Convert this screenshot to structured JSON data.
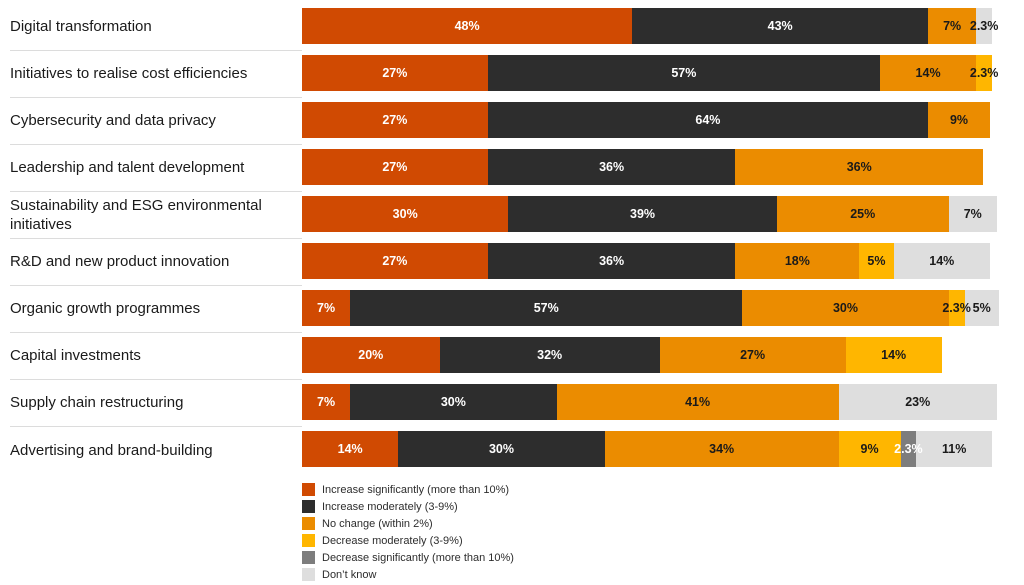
{
  "chart_data": {
    "type": "bar",
    "stacked": true,
    "orientation": "horizontal",
    "unit": "%",
    "xlim": [
      0,
      100
    ],
    "grid": false,
    "legend_position": "bottom-left",
    "categories": [
      "Digital transformation",
      "Initiatives to realise cost efficiencies",
      "Cybersecurity and data privacy",
      "Leadership and talent development",
      "Sustainability and ESG environmental initiatives",
      "R&D and new product innovation",
      "Organic growth programmes",
      "Capital investments",
      "Supply chain restructuring",
      "Advertising and brand-building"
    ],
    "series": [
      {
        "key": "increase-significantly",
        "name": "Increase significantly (more than 10%)",
        "color": "#d04a02",
        "text_color": "#ffffff",
        "values": [
          48,
          27,
          27,
          27,
          30,
          27,
          7,
          20,
          7,
          14
        ]
      },
      {
        "key": "increase-moderately",
        "name": "Increase moderately (3-9%)",
        "color": "#2d2d2d",
        "text_color": "#ffffff",
        "values": [
          43,
          57,
          64,
          36,
          39,
          36,
          57,
          32,
          30,
          30
        ]
      },
      {
        "key": "no-change",
        "name": "No change (within 2%)",
        "color": "#eb8c00",
        "text_color": "#1a1a1a",
        "values": [
          7,
          14,
          9,
          36,
          25,
          18,
          30,
          27,
          41,
          34
        ]
      },
      {
        "key": "decrease-moderately",
        "name": "Decrease moderately (3-9%)",
        "color": "#ffb600",
        "text_color": "#1a1a1a",
        "values": [
          0,
          2.3,
          0,
          0,
          0,
          5,
          2.3,
          14,
          0,
          9
        ]
      },
      {
        "key": "decrease-significantly",
        "name": "Decrease significantly (more than 10%)",
        "color": "#7d7d7d",
        "text_color": "#ffffff",
        "values": [
          0,
          0,
          0,
          0,
          0,
          0,
          0,
          0,
          0,
          2.3
        ]
      },
      {
        "key": "dont-know",
        "name": "Don’t know",
        "color": "#dedede",
        "text_color": "#1a1a1a",
        "values": [
          2.3,
          0,
          0,
          0,
          7,
          14,
          5,
          0,
          23,
          11
        ]
      }
    ]
  }
}
